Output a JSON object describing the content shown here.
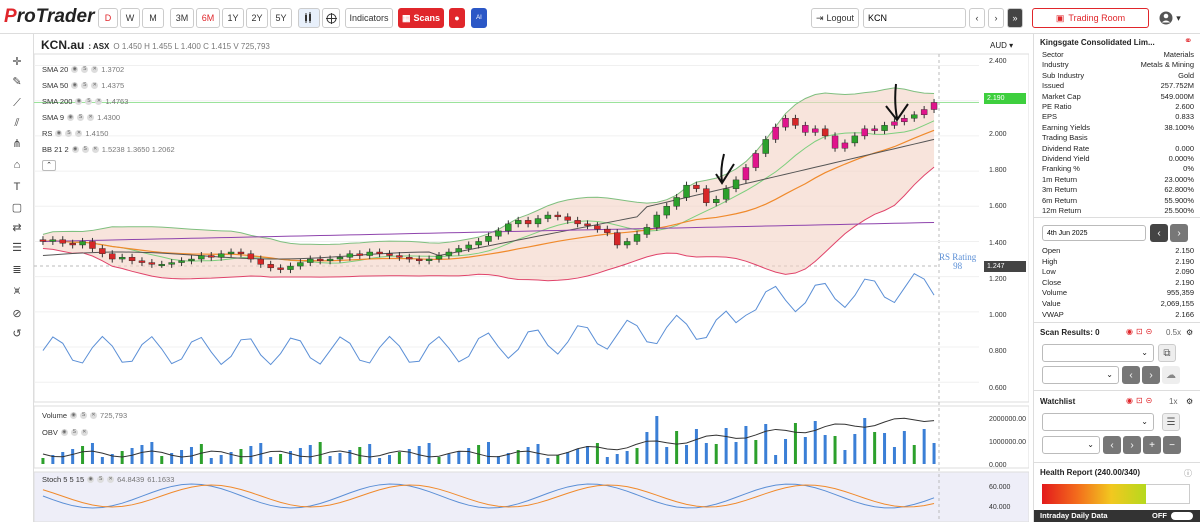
{
  "app": {
    "logo_p": "P",
    "logo_rest": "roTrader"
  },
  "toolbar": {
    "periods": [
      "D",
      "W",
      "M"
    ],
    "ranges": [
      "3M",
      "6M",
      "1Y",
      "2Y",
      "5Y"
    ],
    "indicators_label": "Indicators",
    "scans_label": "Scans",
    "logout_label": "Logout",
    "search_value": "KCN",
    "trading_room_label": "Trading Room"
  },
  "chart_header": {
    "symbol": "KCN.au",
    "exchange": ": ASX",
    "o_label": "O",
    "o": "1.450",
    "h_label": "H",
    "h": "1.455",
    "l_label": "L",
    "l": "1.400",
    "c_label": "C",
    "c": "1.415",
    "v_label": "V",
    "v": "725,793",
    "currency": "AUD"
  },
  "overlays": [
    {
      "name": "SMA 20",
      "values": "1.3702"
    },
    {
      "name": "SMA 50",
      "values": "1.4375"
    },
    {
      "name": "SMA 200",
      "values": "1.4763"
    },
    {
      "name": "SMA 9",
      "values": "1.4300"
    },
    {
      "name": "RS",
      "values": "1.4150"
    },
    {
      "name": "BB 21 2",
      "values": "1.5238   1.3650   1.2062"
    }
  ],
  "price_axis": [
    "2.400",
    "2.200",
    "2.000",
    "1.800",
    "1.600",
    "1.400",
    "1.200",
    "1.000",
    "0.800",
    "0.600"
  ],
  "price_tags": {
    "last": "2.190",
    "rs": "1.247"
  },
  "rs_label": "RS Rating",
  "rs_value": "98",
  "volume_panel": {
    "label": "Volume",
    "value": "725,793",
    "obv_label": "OBV",
    "axis": [
      "2000000.00",
      "1000000.00",
      "0.000"
    ]
  },
  "stoch_panel": {
    "label": "Stoch 5 5 15",
    "v1": "64.8439",
    "v2": "61.1633",
    "axis": [
      "60.000",
      "40.000"
    ]
  },
  "company": {
    "name": "Kingsgate Consolidated Lim...",
    "fields": [
      {
        "k": "Sector",
        "v": "Materials"
      },
      {
        "k": "Industry",
        "v": "Metals & Mining"
      },
      {
        "k": "Sub Industry",
        "v": "Gold"
      },
      {
        "k": "Issued",
        "v": "257.752M"
      },
      {
        "k": "Market Cap",
        "v": "549.000M"
      },
      {
        "k": "PE Ratio",
        "v": "2.600"
      },
      {
        "k": "EPS",
        "v": "0.833"
      },
      {
        "k": "Earning Yields",
        "v": "38.100%"
      },
      {
        "k": "Trading Basis",
        "v": ""
      },
      {
        "k": "Dividend Rate",
        "v": "0.000"
      },
      {
        "k": "Dividend Yield",
        "v": "0.000%"
      },
      {
        "k": "Franking %",
        "v": "0%"
      },
      {
        "k": "1m Return",
        "v": "23.000%"
      },
      {
        "k": "3m Return",
        "v": "62.800%"
      },
      {
        "k": "6m Return",
        "v": "55.900%"
      },
      {
        "k": "12m Return",
        "v": "25.500%"
      }
    ]
  },
  "day": {
    "date": "4th Jun 2025",
    "fields": [
      {
        "k": "Open",
        "v": "2.150"
      },
      {
        "k": "High",
        "v": "2.190"
      },
      {
        "k": "Low",
        "v": "2.090"
      },
      {
        "k": "Close",
        "v": "2.190"
      },
      {
        "k": "Volume",
        "v": "955,359"
      },
      {
        "k": "Value",
        "v": "2,069,155"
      },
      {
        "k": "VWAP",
        "v": "2.166"
      }
    ]
  },
  "scan": {
    "label": "Scan Results: 0",
    "zoom": "0.5x"
  },
  "watchlist": {
    "label": "Watchlist",
    "zoom": "1x"
  },
  "health": {
    "label": "Health Report (240.00/340)"
  },
  "intraday": {
    "label": "Intraday Daily Data",
    "toggle": "OFF"
  },
  "colors": {
    "brand": "#e0262b",
    "up": "#2ca02c",
    "down": "#d62728",
    "bb_fill": "#f3d2c4",
    "rs_line": "#5b8fd6",
    "sma_orange": "#f08a2c",
    "sma_dark": "#555555",
    "sma_purple": "#8e44ad",
    "highlight": "#e0148c"
  },
  "chart_data": {
    "type": "candlestick",
    "series_close": [
      1.4,
      1.41,
      1.39,
      1.38,
      1.4,
      1.36,
      1.33,
      1.3,
      1.31,
      1.29,
      1.28,
      1.27,
      1.27,
      1.28,
      1.29,
      1.3,
      1.32,
      1.31,
      1.33,
      1.34,
      1.33,
      1.3,
      1.27,
      1.25,
      1.24,
      1.26,
      1.28,
      1.3,
      1.29,
      1.3,
      1.31,
      1.33,
      1.32,
      1.34,
      1.33,
      1.32,
      1.31,
      1.3,
      1.29,
      1.3,
      1.32,
      1.34,
      1.36,
      1.38,
      1.4,
      1.43,
      1.46,
      1.5,
      1.52,
      1.5,
      1.53,
      1.55,
      1.54,
      1.52,
      1.5,
      1.49,
      1.47,
      1.45,
      1.38,
      1.4,
      1.44,
      1.48,
      1.55,
      1.6,
      1.65,
      1.72,
      1.7,
      1.62,
      1.64,
      1.7,
      1.75,
      1.82,
      1.9,
      1.98,
      2.05,
      2.1,
      2.06,
      2.02,
      2.04,
      2.0,
      1.93,
      1.96,
      2.0,
      2.04,
      2.03,
      2.06,
      2.08,
      2.1,
      2.12,
      2.15,
      2.19
    ],
    "ylim": [
      0.55,
      2.42
    ]
  }
}
